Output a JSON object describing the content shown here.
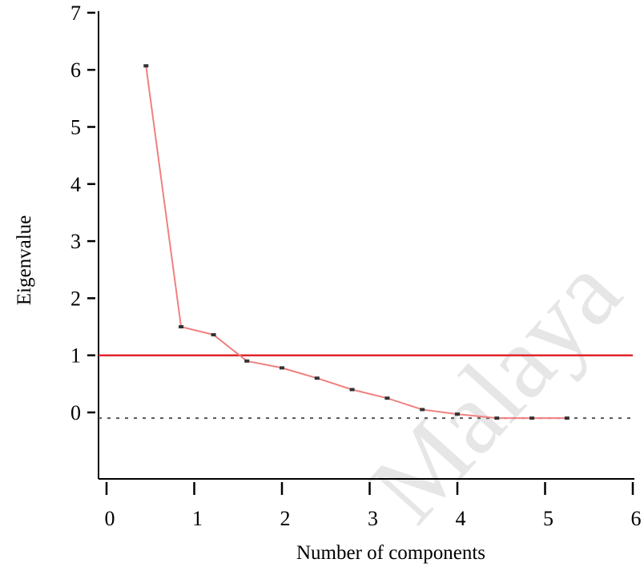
{
  "chart_data": {
    "type": "line",
    "title": "",
    "xlabel": "Number of components",
    "ylabel": "Eigenvalue",
    "xlim": [
      0,
      6
    ],
    "ylim": [
      -1.5,
      7
    ],
    "x_ticks": [
      0,
      1,
      2,
      3,
      4,
      5,
      6
    ],
    "y_ticks": [
      0,
      1,
      2,
      3,
      4,
      5,
      6,
      7
    ],
    "grid": false,
    "series": [
      {
        "color": "#f08080",
        "x": [
          0.45,
          0.85,
          1.22,
          1.6,
          2.0,
          2.4,
          2.8,
          3.2,
          3.6,
          4.0,
          4.45,
          4.85,
          5.25
        ],
        "values": [
          6.07,
          1.5,
          1.36,
          0.9,
          0.78,
          0.6,
          0.4,
          0.25,
          0.05,
          -0.03,
          -0.1,
          -0.1,
          -0.1
        ]
      }
    ],
    "reference_lines": [
      {
        "y": 1,
        "style": "solid",
        "color": "#e0262b"
      },
      {
        "y": -0.1,
        "style": "dashed",
        "color": "#555555"
      }
    ]
  },
  "watermark": {
    "text": "Malaya",
    "color": "#e6e6e6"
  }
}
